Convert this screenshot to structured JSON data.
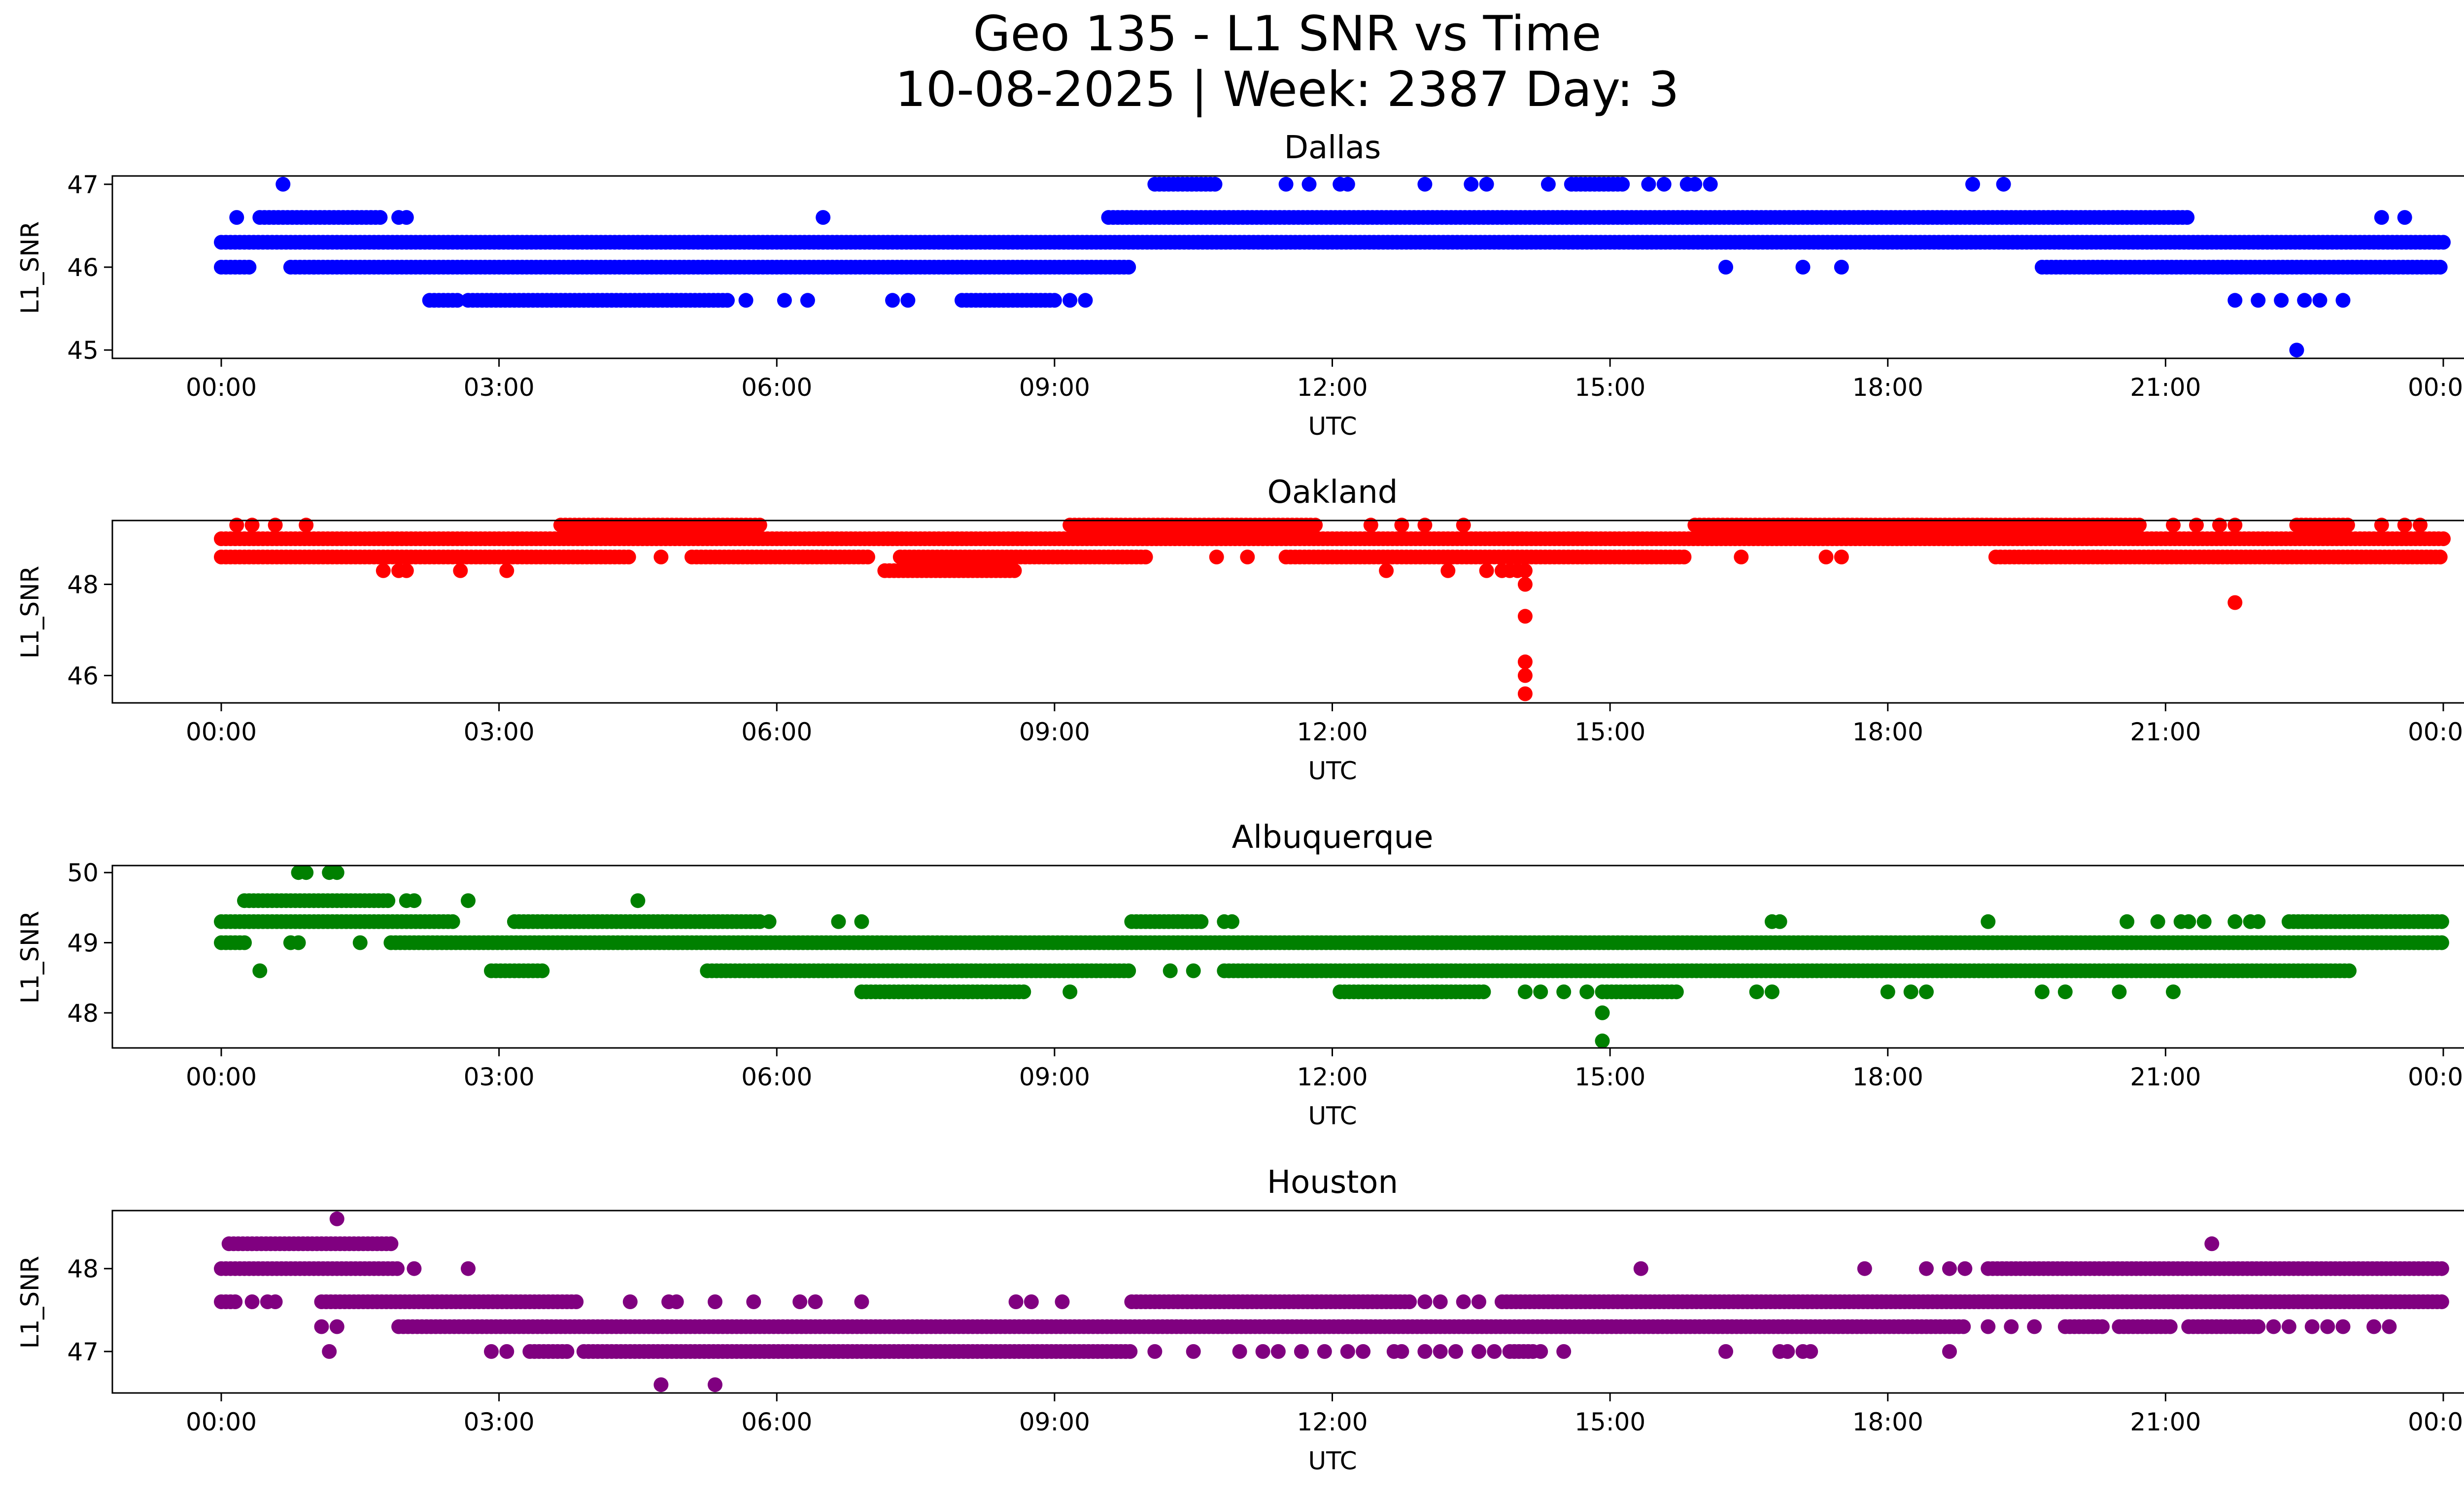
{
  "figure": {
    "title_line1": "Geo 135 - L1 SNR vs Time",
    "title_line2": "10-08-2025 | Week: 2387 Day: 3"
  },
  "chart_data": [
    {
      "type": "scatter",
      "title": "Dallas",
      "xlabel": "UTC",
      "ylabel": "L1_SNR",
      "color": "#0000ff",
      "xlim": [
        "00:00",
        "24:00"
      ],
      "ylim": [
        44.9,
        47.1
      ],
      "xticks": [
        "00:00",
        "03:00",
        "06:00",
        "09:00",
        "12:00",
        "15:00",
        "18:00",
        "21:00",
        "00:00"
      ],
      "yticks": [
        45,
        46,
        47
      ],
      "levels": [
        {
          "y": 46.3,
          "segments": [
            [
              "00:00",
              "24:00"
            ]
          ]
        },
        {
          "y": 46.0,
          "segments": [
            [
              "00:00",
              "00:20"
            ],
            [
              "00:45",
              "09:50"
            ],
            [
              "19:40",
              "24:00"
            ]
          ],
          "points": [
            "01:00",
            "16:15",
            "17:05",
            "17:30"
          ]
        },
        {
          "y": 46.6,
          "segments": [
            [
              "00:25",
              "01:45"
            ],
            [
              "09:35",
              "21:15"
            ]
          ],
          "points": [
            "00:10",
            "01:55",
            "02:00",
            "06:30",
            "23:20",
            "23:35"
          ]
        },
        {
          "y": 45.6,
          "segments": [
            [
              "02:15",
              "02:35"
            ],
            [
              "02:40",
              "05:30"
            ],
            [
              "08:00",
              "09:00"
            ]
          ],
          "points": [
            "05:40",
            "06:05",
            "06:20",
            "07:15",
            "07:25",
            "09:10",
            "09:20",
            "21:45",
            "22:00",
            "22:15",
            "22:30",
            "22:40",
            "22:55"
          ]
        },
        {
          "y": 47.0,
          "segments": [
            [
              "10:05",
              "10:45"
            ],
            [
              "14:35",
              "15:10"
            ]
          ],
          "points": [
            "00:40",
            "11:30",
            "11:45",
            "12:05",
            "12:10",
            "13:00",
            "13:30",
            "13:40",
            "14:20",
            "15:25",
            "15:35",
            "15:50",
            "15:55",
            "16:05",
            "18:55",
            "19:15"
          ]
        },
        {
          "y": 45.0,
          "points": [
            "22:25"
          ]
        }
      ]
    },
    {
      "type": "scatter",
      "title": "Oakland",
      "xlabel": "UTC",
      "ylabel": "L1_SNR",
      "color": "#ff0000",
      "xlim": [
        "00:00",
        "24:00"
      ],
      "ylim": [
        45.4,
        49.4
      ],
      "xticks": [
        "00:00",
        "03:00",
        "06:00",
        "09:00",
        "12:00",
        "15:00",
        "18:00",
        "21:00",
        "00:00"
      ],
      "yticks": [
        46,
        48
      ],
      "levels": [
        {
          "y": 49.0,
          "segments": [
            [
              "00:00",
              "24:00"
            ]
          ]
        },
        {
          "y": 48.6,
          "segments": [
            [
              "00:00",
              "04:25"
            ],
            [
              "05:05",
              "07:00"
            ],
            [
              "07:20",
              "10:00"
            ],
            [
              "11:30",
              "15:50"
            ],
            [
              "19:10",
              "24:00"
            ]
          ],
          "points": [
            "04:45",
            "10:45",
            "11:05",
            "16:25",
            "17:20",
            "17:30"
          ]
        },
        {
          "y": 49.3,
          "segments": [
            [
              "03:40",
              "05:50"
            ],
            [
              "09:10",
              "11:50"
            ],
            [
              "15:55",
              "20:45"
            ],
            [
              "22:25",
              "23:00"
            ]
          ],
          "points": [
            "00:10",
            "00:20",
            "00:35",
            "00:55",
            "12:25",
            "12:45",
            "13:00",
            "13:25",
            "21:05",
            "21:20",
            "21:35",
            "21:45",
            "23:20",
            "23:35",
            "23:45"
          ]
        },
        {
          "y": 48.3,
          "segments": [
            [
              "07:10",
              "08:35"
            ]
          ],
          "points": [
            "01:45",
            "01:55",
            "02:00",
            "02:35",
            "03:05",
            "12:35",
            "13:15",
            "13:40",
            "13:50",
            "13:55",
            "14:00",
            "14:05"
          ]
        },
        {
          "y": 48.0,
          "points": [
            "14:05"
          ]
        },
        {
          "y": 47.3,
          "points": [
            "14:05"
          ]
        },
        {
          "y": 47.6,
          "points": [
            "21:45"
          ]
        },
        {
          "y": 46.3,
          "points": [
            "14:05"
          ]
        },
        {
          "y": 46.0,
          "points": [
            "14:05"
          ]
        },
        {
          "y": 45.6,
          "points": [
            "14:05"
          ]
        }
      ]
    },
    {
      "type": "scatter",
      "title": "Albuquerque",
      "xlabel": "UTC",
      "ylabel": "L1_SNR",
      "color": "#008000",
      "xlim": [
        "00:00",
        "24:00"
      ],
      "ylim": [
        47.5,
        50.1
      ],
      "xticks": [
        "00:00",
        "03:00",
        "06:00",
        "09:00",
        "12:00",
        "15:00",
        "18:00",
        "21:00",
        "00:00"
      ],
      "yticks": [
        48,
        49,
        50
      ],
      "levels": [
        {
          "y": 49.0,
          "segments": [
            [
              "00:00",
              "00:15"
            ],
            [
              "01:50",
              "24:00"
            ]
          ],
          "points": [
            "00:45",
            "00:50",
            "01:30"
          ]
        },
        {
          "y": 49.3,
          "segments": [
            [
              "00:00",
              "02:30"
            ],
            [
              "03:10",
              "05:50"
            ],
            [
              "09:50",
              "10:35"
            ],
            [
              "22:20",
              "24:00"
            ]
          ],
          "points": [
            "05:55",
            "06:40",
            "06:55",
            "10:50",
            "10:55",
            "16:45",
            "16:50",
            "19:05",
            "20:35",
            "20:55",
            "21:10",
            "21:15",
            "21:25",
            "21:45",
            "21:55",
            "22:00"
          ]
        },
        {
          "y": 49.6,
          "segments": [
            [
              "00:15",
              "01:50"
            ]
          ],
          "points": [
            "02:00",
            "02:05",
            "02:40",
            "04:30"
          ]
        },
        {
          "y": 50.0,
          "points": [
            "00:50",
            "00:55",
            "01:10",
            "01:15"
          ]
        },
        {
          "y": 48.6,
          "segments": [
            [
              "02:55",
              "03:30"
            ],
            [
              "05:15",
              "09:50"
            ],
            [
              "10:50",
              "23:00"
            ]
          ],
          "points": [
            "00:25",
            "10:15",
            "10:30"
          ]
        },
        {
          "y": 48.3,
          "segments": [
            [
              "06:55",
              "08:40"
            ],
            [
              "12:05",
              "13:40"
            ],
            [
              "14:55",
              "15:45"
            ]
          ],
          "points": [
            "09:10",
            "14:05",
            "14:15",
            "14:30",
            "14:45",
            "16:35",
            "16:45",
            "18:00",
            "18:15",
            "18:25",
            "19:40",
            "19:55",
            "20:30",
            "21:05"
          ]
        },
        {
          "y": 48.0,
          "points": [
            "14:55"
          ]
        },
        {
          "y": 47.6,
          "points": [
            "14:55"
          ]
        }
      ]
    },
    {
      "type": "scatter",
      "title": "Houston",
      "xlabel": "UTC",
      "ylabel": "L1_SNR",
      "color": "#800080",
      "xlim": [
        "00:00",
        "24:00"
      ],
      "ylim": [
        46.5,
        48.7
      ],
      "xticks": [
        "00:00",
        "03:00",
        "06:00",
        "09:00",
        "12:00",
        "15:00",
        "18:00",
        "21:00",
        "00:00"
      ],
      "yticks": [
        47,
        48
      ],
      "levels": [
        {
          "y": 48.0,
          "segments": [
            [
              "00:00",
              "01:55"
            ],
            [
              "19:05",
              "24:00"
            ]
          ],
          "points": [
            "02:05",
            "02:40",
            "15:20",
            "17:45",
            "18:25",
            "18:40",
            "18:50"
          ]
        },
        {
          "y": 48.3,
          "segments": [
            [
              "00:05",
              "01:50"
            ]
          ],
          "points": [
            "21:30"
          ]
        },
        {
          "y": 48.6,
          "points": [
            "01:15"
          ]
        },
        {
          "y": 47.6,
          "segments": [
            [
              "00:00",
              "00:10"
            ],
            [
              "01:05",
              "03:50"
            ],
            [
              "09:50",
              "12:50"
            ],
            [
              "13:50",
              "24:00"
            ]
          ],
          "points": [
            "00:20",
            "00:30",
            "00:35",
            "04:25",
            "04:50",
            "04:55",
            "05:20",
            "05:45",
            "06:15",
            "06:25",
            "06:55",
            "08:35",
            "08:45",
            "09:05",
            "13:00",
            "13:10",
            "13:25",
            "13:35"
          ]
        },
        {
          "y": 47.3,
          "segments": [
            [
              "01:55",
              "18:50"
            ],
            [
              "19:55",
              "20:20"
            ],
            [
              "20:30",
              "21:05"
            ],
            [
              "21:15",
              "22:00"
            ]
          ],
          "points": [
            "01:05",
            "01:15",
            "19:05",
            "19:20",
            "19:35",
            "22:10",
            "22:20",
            "22:35",
            "22:45",
            "22:55",
            "23:15",
            "23:25"
          ]
        },
        {
          "y": 47.0,
          "segments": [
            [
              "03:20",
              "03:45"
            ],
            [
              "03:55",
              "09:50"
            ],
            [
              "13:55",
              "14:10"
            ]
          ],
          "points": [
            "01:10",
            "02:55",
            "03:05",
            "10:05",
            "10:30",
            "11:00",
            "11:15",
            "11:25",
            "11:40",
            "11:55",
            "12:10",
            "12:20",
            "12:40",
            "12:45",
            "13:00",
            "13:10",
            "13:20",
            "13:35",
            "13:45",
            "14:15",
            "14:30",
            "16:15",
            "16:50",
            "16:55",
            "17:05",
            "17:10",
            "18:40"
          ]
        },
        {
          "y": 46.6,
          "points": [
            "04:45",
            "05:20"
          ]
        }
      ]
    }
  ]
}
